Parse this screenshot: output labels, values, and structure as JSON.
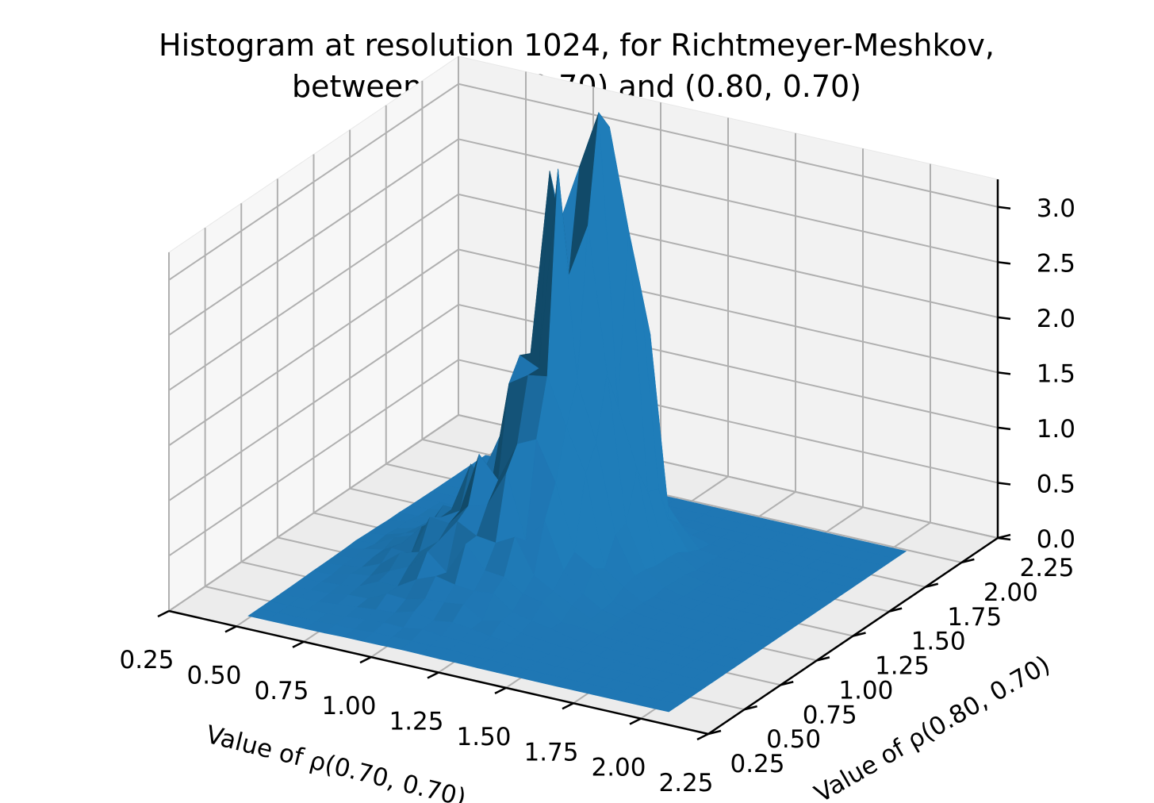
{
  "chart_data": {
    "type": "surface3d",
    "title_line1": "Histogram at resolution 1024, for Richtmeyer-Meshkov,",
    "title_line2": "between (0.70, 0.70) and (0.80, 0.70)",
    "xlabel": "Value of ρ(0.70, 0.70)",
    "ylabel": "Value of ρ(0.80, 0.70)",
    "x_ticks": [
      "0.25",
      "0.50",
      "0.75",
      "1.00",
      "1.25",
      "1.50",
      "1.75",
      "2.00",
      "2.25"
    ],
    "y_ticks": [
      "0.25",
      "0.50",
      "0.75",
      "1.00",
      "1.25",
      "1.50",
      "1.75",
      "2.00",
      "2.25"
    ],
    "z_ticks": [
      "0.0",
      "0.5",
      "1.0",
      "1.5",
      "2.0",
      "2.5",
      "3.0"
    ],
    "xlim": [
      0.25,
      2.25
    ],
    "ylim": [
      0.25,
      2.25
    ],
    "zlim": [
      0.0,
      3.25
    ],
    "grid": true,
    "surface_color": "#1f77b4",
    "peak": {
      "x": 1.2,
      "y": 1.3,
      "z": 3.0
    },
    "secondary_peak": {
      "x": 1.3,
      "y": 1.45,
      "z": 2.7
    }
  }
}
